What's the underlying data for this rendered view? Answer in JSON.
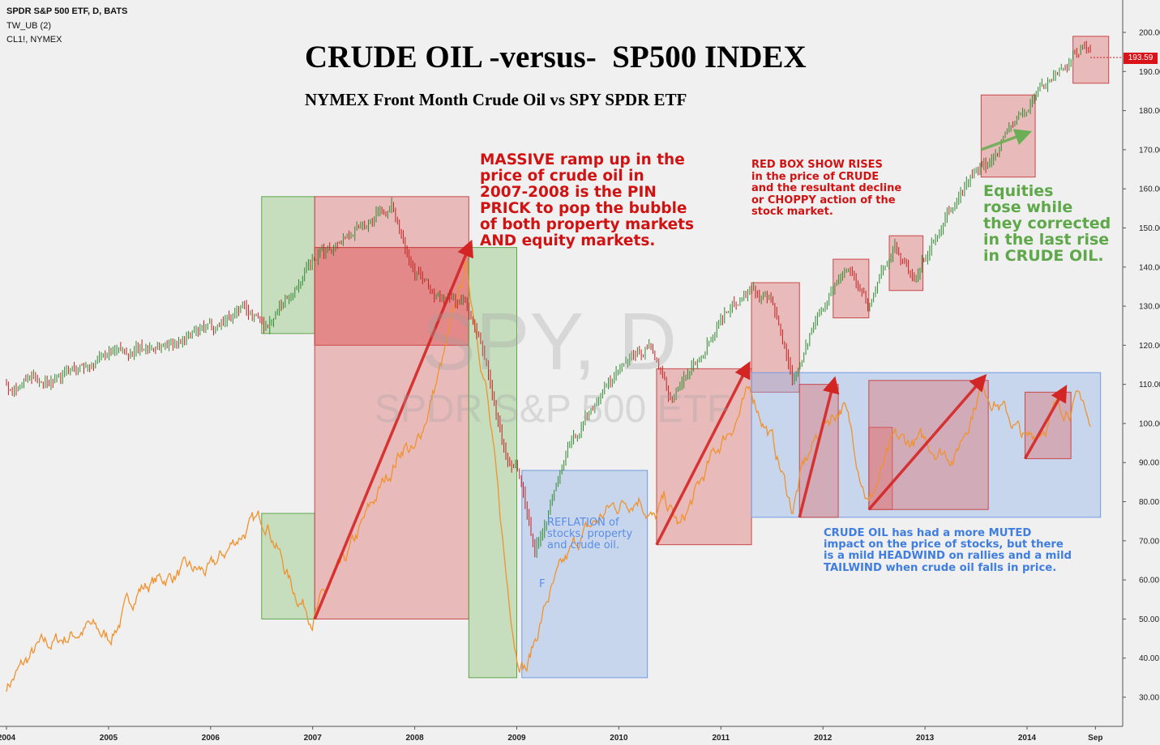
{
  "header": {
    "line1": "SPDR S&P 500 ETF, D, BATS",
    "line2": "TW_UB (2)",
    "line3": "CL1!, NYMEX"
  },
  "watermark": {
    "symbol": "SPY, D",
    "name": "SPDR S&P 500 ETF"
  },
  "price_tag": "193.59",
  "annotations": {
    "massive": "MASSIVE ramp up in the\nprice of crude oil in\n2007-2008 is the PIN\nPRICK to pop the bubble\nof both property markets\nAND equity markets.",
    "redbox": "RED BOX SHOW RISES\nin the price of CRUDE\nand the resultant decline\nor CHOPPY action of the\nstock market.",
    "equities": "Equities\nrose while\nthey corrected\nin the last rise\nin CRUDE OIL.",
    "muted": "CRUDE OIL has had a more MUTED\nimpact on the price of stocks, but there\nis a mild HEADWIND on rallies and a mild\nTAILWIND when crude oil falls in price.",
    "reflation": "REFLATION of\nstocks, property\nand crude oil.",
    "f_marker": "F"
  },
  "colors": {
    "spy_up": "#2f8a2f",
    "spy_down": "#c42020",
    "crude": "#f0922e",
    "red_box": "#e07070",
    "green_box": "#8cc47a",
    "blue_box": "#8fb3ea",
    "arrow_red": "#d42525",
    "arrow_green": "#6aae55"
  },
  "chart_data": {
    "type": "line",
    "title": "CRUDE OIL -versus-  SP500 INDEX",
    "subtitle": "NYMEX Front Month Crude Oil vs SPY SPDR ETF",
    "xlabel": "",
    "ylabel": "",
    "x_ticks": [
      "2004",
      "2005",
      "2006",
      "2007",
      "2008",
      "2009",
      "2010",
      "2011",
      "2012",
      "2013",
      "2014",
      "Sep"
    ],
    "y_ticks": [
      "200.00",
      "190.00",
      "180.00",
      "170.00",
      "160.00",
      "150.00",
      "140.00",
      "130.00",
      "120.00",
      "110.00",
      "100.00",
      "90.00",
      "80.00",
      "70.00",
      "60.00",
      "50.00",
      "40.00",
      "30.00"
    ],
    "ylim": [
      25,
      205
    ],
    "last_price": 193.59,
    "grid": false,
    "series": [
      {
        "name": "SPDR S&P 500 ETF",
        "style": "candlestick",
        "x": [
          2004.0,
          2004.5,
          2005.0,
          2005.5,
          2006.0,
          2006.3,
          2006.55,
          2007.0,
          2007.4,
          2007.78,
          2008.0,
          2008.2,
          2008.5,
          2008.7,
          2008.9,
          2009.0,
          2009.18,
          2009.5,
          2009.8,
          2010.0,
          2010.3,
          2010.5,
          2010.8,
          2011.0,
          2011.3,
          2011.5,
          2011.7,
          2011.9,
          2012.0,
          2012.25,
          2012.45,
          2012.7,
          2012.9,
          2013.0,
          2013.4,
          2013.45,
          2013.6,
          2013.8,
          2014.0,
          2014.1,
          2014.3,
          2014.55,
          2014.62
        ],
        "values": [
          110,
          112,
          117,
          120,
          124,
          130,
          125,
          141,
          150,
          155,
          140,
          132,
          131,
          115,
          90,
          90,
          68,
          93,
          107,
          113,
          120,
          106,
          118,
          128,
          135,
          130,
          112,
          124,
          131,
          141,
          130,
          146,
          135,
          142,
          161,
          163,
          165,
          175,
          180,
          185,
          190,
          197,
          193.59
        ]
      },
      {
        "name": "CL1!, NYMEX",
        "style": "line",
        "x": [
          2004.0,
          2004.3,
          2004.8,
          2005.0,
          2005.3,
          2005.7,
          2006.0,
          2006.3,
          2006.55,
          2006.8,
          2007.0,
          2007.3,
          2007.6,
          2007.9,
          2008.0,
          2008.3,
          2008.5,
          2008.7,
          2008.9,
          2009.0,
          2009.1,
          2009.3,
          2009.6,
          2009.9,
          2010.2,
          2010.35,
          2010.45,
          2010.6,
          2010.9,
          2011.0,
          2011.3,
          2011.5,
          2011.7,
          2011.8,
          2012.0,
          2012.2,
          2012.45,
          2012.7,
          2013.0,
          2013.3,
          2013.55,
          2013.7,
          2014.0,
          2014.3,
          2014.55,
          2014.62
        ],
        "values": [
          33,
          42,
          48,
          45,
          58,
          62,
          62,
          72,
          76,
          58,
          51,
          63,
          80,
          95,
          92,
          118,
          140,
          110,
          60,
          42,
          38,
          55,
          70,
          78,
          82,
          75,
          80,
          73,
          90,
          95,
          108,
          96,
          78,
          88,
          100,
          105,
          80,
          95,
          95,
          92,
          110,
          106,
          95,
          104,
          106,
          98
        ]
      }
    ],
    "boxes": [
      {
        "kind": "green",
        "x": [
          2006.5,
          2007.02
        ],
        "y": [
          123,
          158
        ]
      },
      {
        "kind": "red",
        "x": [
          2007.02,
          2008.53
        ],
        "y": [
          120,
          158
        ]
      },
      {
        "kind": "red",
        "x": [
          2007.02,
          2008.53
        ],
        "y": [
          145,
          120
        ]
      },
      {
        "kind": "green",
        "x": [
          2006.5,
          2007.02
        ],
        "y": [
          50,
          77
        ]
      },
      {
        "kind": "red",
        "x": [
          2007.02,
          2008.53
        ],
        "y": [
          50,
          145
        ]
      },
      {
        "kind": "green",
        "x": [
          2008.53,
          2009.0
        ],
        "y": [
          35,
          145
        ]
      },
      {
        "kind": "blue",
        "x": [
          2009.05,
          2010.28
        ],
        "y": [
          35,
          88
        ]
      },
      {
        "kind": "red",
        "x": [
          2010.37,
          2011.3
        ],
        "y": [
          69,
          114
        ]
      },
      {
        "kind": "red",
        "x": [
          2011.3,
          2011.77
        ],
        "y": [
          108,
          136
        ]
      },
      {
        "kind": "blue",
        "x": [
          2011.3,
          2014.72
        ],
        "y": [
          76,
          113
        ]
      },
      {
        "kind": "red",
        "x": [
          2011.77,
          2012.15
        ],
        "y": [
          76,
          110
        ]
      },
      {
        "kind": "red",
        "x": [
          2012.45,
          2012.68
        ],
        "y": [
          78,
          99
        ]
      },
      {
        "kind": "red",
        "x": [
          2012.45,
          2013.62
        ],
        "y": [
          78,
          111
        ]
      },
      {
        "kind": "red",
        "x": [
          2013.98,
          2014.43
        ],
        "y": [
          91,
          108
        ]
      },
      {
        "kind": "red",
        "x": [
          2012.1,
          2012.45
        ],
        "y": [
          127,
          142
        ]
      },
      {
        "kind": "red",
        "x": [
          2012.65,
          2012.98
        ],
        "y": [
          134,
          148
        ]
      },
      {
        "kind": "red",
        "x": [
          2013.55,
          2014.08
        ],
        "y": [
          163,
          184
        ]
      },
      {
        "kind": "red",
        "x": [
          2014.45,
          2014.8
        ],
        "y": [
          187,
          199
        ]
      }
    ],
    "arrows": [
      {
        "kind": "red",
        "from": [
          2007.02,
          50
        ],
        "to": [
          2008.53,
          145
        ]
      },
      {
        "kind": "red",
        "from": [
          2010.37,
          69
        ],
        "to": [
          2011.25,
          114
        ]
      },
      {
        "kind": "red",
        "from": [
          2011.77,
          76
        ],
        "to": [
          2012.1,
          110
        ]
      },
      {
        "kind": "red",
        "from": [
          2012.45,
          78
        ],
        "to": [
          2013.55,
          111
        ]
      },
      {
        "kind": "red",
        "from": [
          2013.98,
          91
        ],
        "to": [
          2014.35,
          108
        ]
      },
      {
        "kind": "green",
        "from": [
          2013.55,
          170
        ],
        "to": [
          2013.97,
          174
        ]
      }
    ]
  }
}
